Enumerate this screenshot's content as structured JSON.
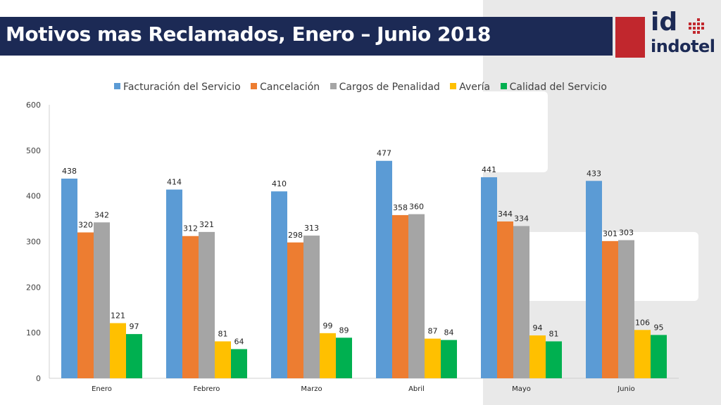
{
  "header": {
    "title": "Motivos mas Reclamados, Enero – Junio 2018"
  },
  "logo": {
    "mark": "id",
    "name": "indotel",
    "colors": {
      "navy": "#1c2a55",
      "red": "#c1272d"
    }
  },
  "chart_data": {
    "type": "bar",
    "title": "",
    "xlabel": "",
    "ylabel": "",
    "categories": [
      "Enero",
      "Febrero",
      "Marzo",
      "Abril",
      "Mayo",
      "Junio"
    ],
    "series": [
      {
        "name": "Facturación del Servicio",
        "color": "#5b9bd5",
        "values": [
          438,
          414,
          410,
          477,
          441,
          433
        ]
      },
      {
        "name": "Cancelación",
        "color": "#ed7d31",
        "values": [
          320,
          312,
          298,
          358,
          344,
          301
        ]
      },
      {
        "name": "Cargos de Penalidad",
        "color": "#a5a5a5",
        "values": [
          342,
          321,
          313,
          360,
          334,
          303
        ]
      },
      {
        "name": "Avería",
        "color": "#ffc000",
        "values": [
          121,
          81,
          99,
          87,
          94,
          106
        ]
      },
      {
        "name": "Calidad del Servicio",
        "color": "#00b050",
        "values": [
          97,
          64,
          89,
          84,
          81,
          95
        ]
      }
    ],
    "ylim": [
      0,
      600
    ],
    "yticks": [
      "0",
      "100",
      "200",
      "300",
      "400",
      "500",
      "600"
    ],
    "grid": false,
    "legend_position": "top",
    "data_labels": true
  }
}
